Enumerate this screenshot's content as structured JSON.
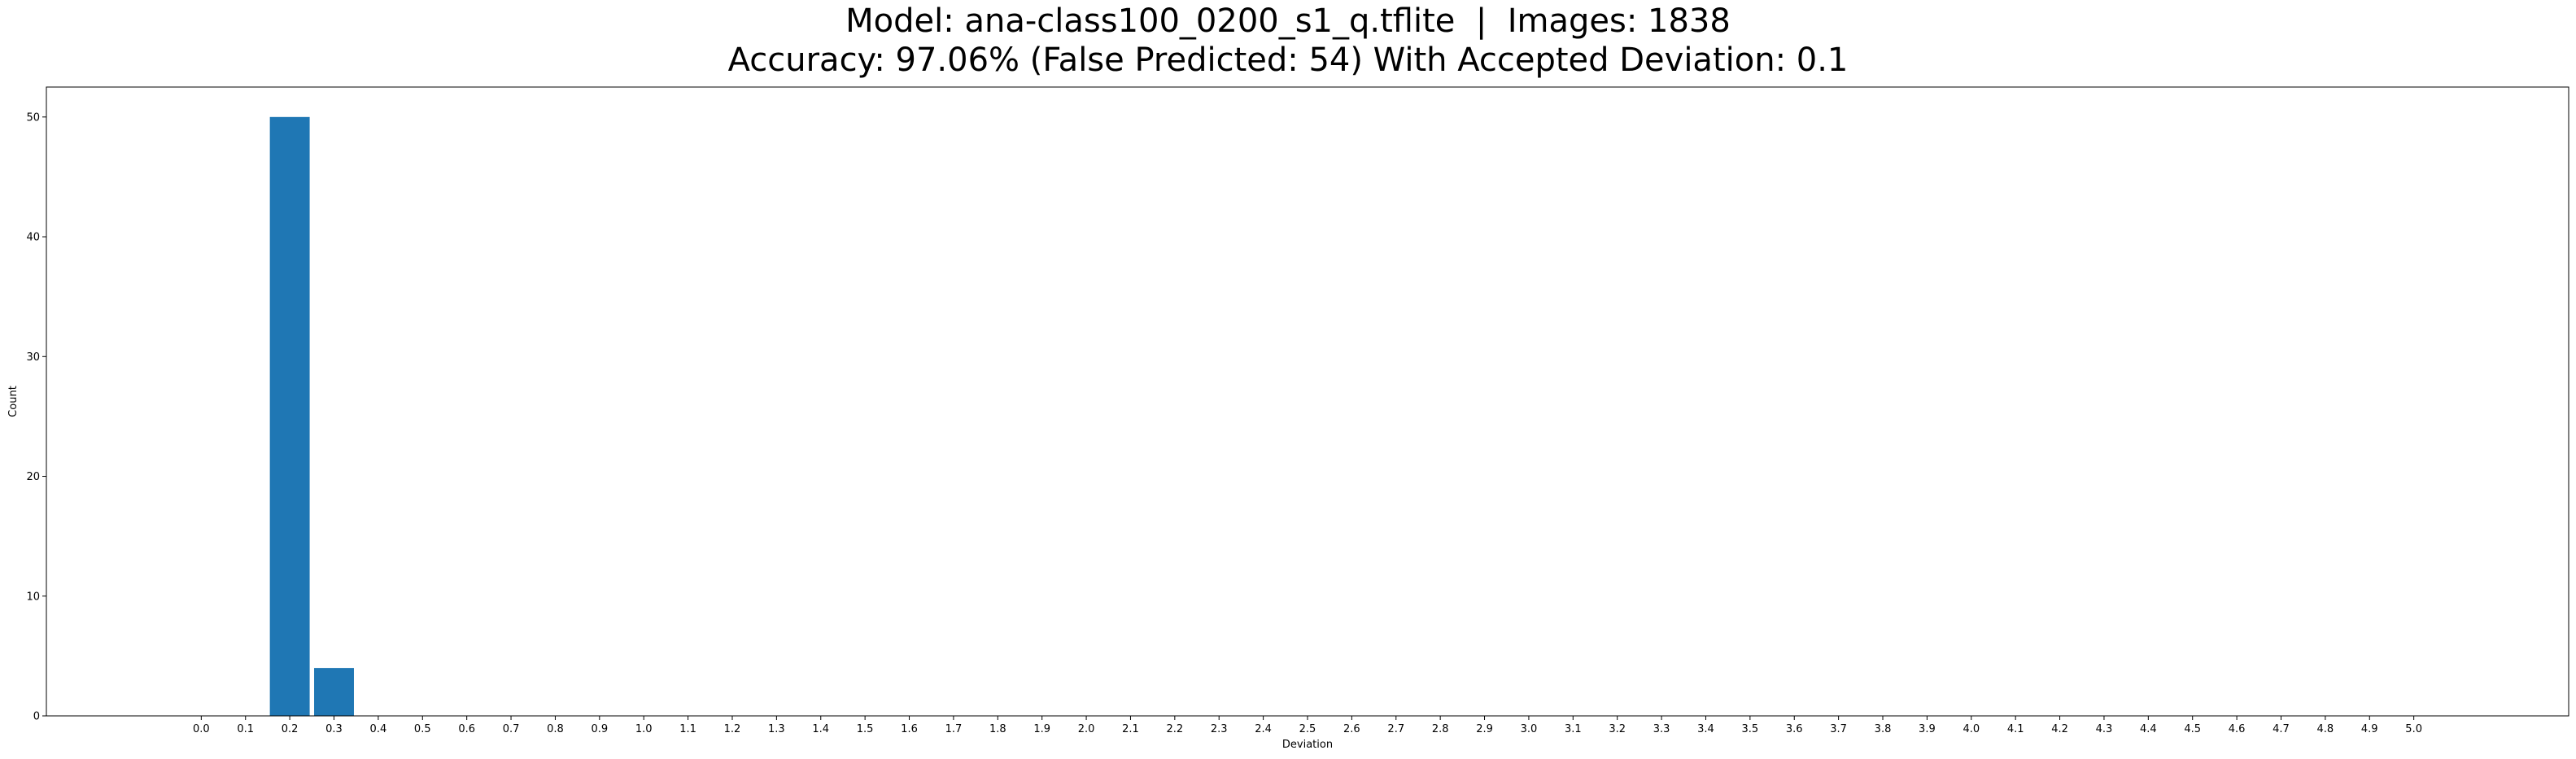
{
  "chart_data": {
    "type": "bar",
    "title": "Model: ana-class100_0200_s1_q.tflite  |  Images: 1838",
    "subtitle": "Accuracy: 97.06% (False Predicted: 54) With Accepted Deviation: 0.1",
    "xlabel": "Deviation",
    "ylabel": "Count",
    "categories": [
      "0.0",
      "0.1",
      "0.2",
      "0.3",
      "0.4",
      "0.5",
      "0.6",
      "0.7",
      "0.8",
      "0.9",
      "1.0",
      "1.1",
      "1.2",
      "1.3",
      "1.4",
      "1.5",
      "1.6",
      "1.7",
      "1.8",
      "1.9",
      "2.0",
      "2.1",
      "2.2",
      "2.3",
      "2.4",
      "2.5",
      "2.6",
      "2.7",
      "2.8",
      "2.9",
      "3.0",
      "3.1",
      "3.2",
      "3.3",
      "3.4",
      "3.5",
      "3.6",
      "3.7",
      "3.8",
      "3.9",
      "4.0",
      "4.1",
      "4.2",
      "4.3",
      "4.4",
      "4.5",
      "4.6",
      "4.7",
      "4.8",
      "4.9",
      "5.0"
    ],
    "values": [
      0,
      0,
      50,
      4,
      0,
      0,
      0,
      0,
      0,
      0,
      0,
      0,
      0,
      0,
      0,
      0,
      0,
      0,
      0,
      0,
      0,
      0,
      0,
      0,
      0,
      0,
      0,
      0,
      0,
      0,
      0,
      0,
      0,
      0,
      0,
      0,
      0,
      0,
      0,
      0,
      0,
      0,
      0,
      0,
      0,
      0,
      0,
      0,
      0,
      0,
      0
    ],
    "yticks": [
      0,
      10,
      20,
      30,
      40,
      50
    ],
    "ylim": [
      0,
      52.5
    ],
    "xlim": [
      -0.35,
      5.35
    ],
    "bar_width": 0.09,
    "grid": false,
    "colors": {
      "bar": "#1f77b4",
      "axis": "#000000"
    }
  }
}
